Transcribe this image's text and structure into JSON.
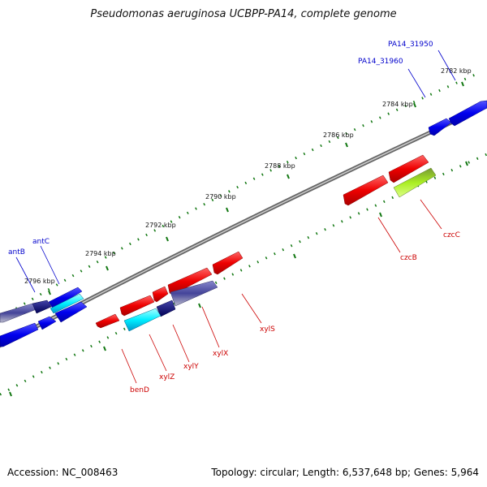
{
  "title": "Pseudomonas aeruginosa UCBPP-PA14, complete genome",
  "footer": {
    "accession": "Accession: NC_008463",
    "summary": "Topology: circular; Length: 6,537,648 bp; Genes: 5,964"
  },
  "scale_labels": [
    "2782 kbp",
    "2784 kbp",
    "2786 kbp",
    "2788 kbp",
    "2790 kbp",
    "2792 kbp",
    "2794 kbp",
    "2796 kbp"
  ],
  "gene_labels": {
    "forward": [
      "PA14_31950",
      "PA14_31960",
      "antB",
      "antC"
    ],
    "reverse": [
      "czcC",
      "czcB",
      "xylS",
      "xylX",
      "xylY",
      "xylZ",
      "benD"
    ]
  },
  "colors": {
    "forward_gene": "#0000dd",
    "reverse_gene": "#ee0000",
    "backbone": "#888888",
    "tick": "#117711",
    "label_forward": "#0000cc",
    "label_reverse": "#cc0000"
  }
}
